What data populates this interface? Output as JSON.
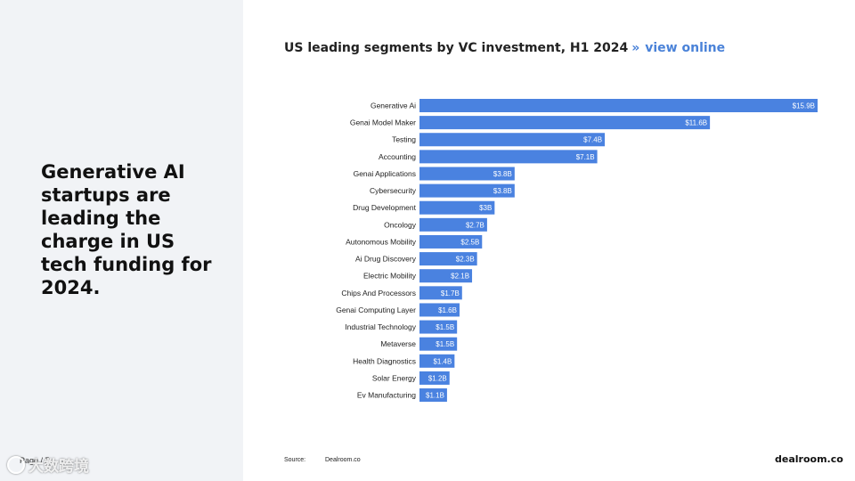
{
  "headline": "Generative AI startups are leading the charge in US tech funding for 2024.",
  "page_label": "Page / 5",
  "watermark": "大数跨境",
  "chart_title": "US leading segments by VC investment, H1 2024",
  "chart_separator": "»",
  "view_online_link": "view online",
  "source_label": "Source:",
  "source_value": "Dealroom.co",
  "brand": "dealroom.co",
  "colors": {
    "bar": "#4a82e0",
    "panel": "#f1f3f6",
    "link": "#4a82d8"
  },
  "chart_data": {
    "type": "bar",
    "orientation": "horizontal",
    "title": "US leading segments by VC investment, H1 2024",
    "xlabel": "",
    "ylabel": "",
    "unit": "$B",
    "categories": [
      "Generative Ai",
      "Genai Model Maker",
      "Testing",
      "Accounting",
      "Genai Applications",
      "Cybersecurity",
      "Drug Development",
      "Oncology",
      "Autonomous Mobility",
      "Ai Drug Discovery",
      "Electric Mobility",
      "Chips And Processors",
      "Genai Computing Layer",
      "Industrial Technology",
      "Metaverse",
      "Health Diagnostics",
      "Solar Energy",
      "Ev Manufacturing"
    ],
    "values": [
      15.9,
      11.6,
      7.4,
      7.1,
      3.8,
      3.8,
      3,
      2.7,
      2.5,
      2.3,
      2.1,
      1.7,
      1.6,
      1.5,
      1.5,
      1.4,
      1.2,
      1.1
    ],
    "value_labels": [
      "$15.9B",
      "$11.6B",
      "$7.4B",
      "$7.1B",
      "$3.8B",
      "$3.8B",
      "$3B",
      "$2.7B",
      "$2.5B",
      "$2.3B",
      "$2.1B",
      "$1.7B",
      "$1.6B",
      "$1.5B",
      "$1.5B",
      "$1.4B",
      "$1.2B",
      "$1.1B"
    ],
    "xlim": [
      0,
      15.9
    ],
    "grid": false,
    "legend": "none"
  }
}
